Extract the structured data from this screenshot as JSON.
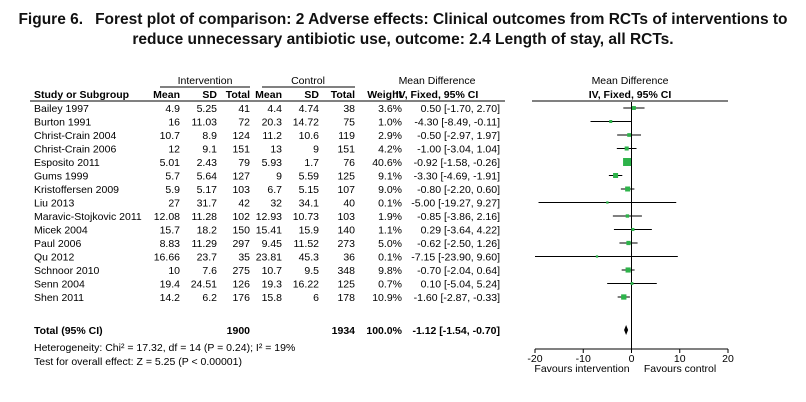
{
  "caption": {
    "label": "Figure 6.",
    "line1": "Forest plot of comparison: 2 Adverse effects: Clinical outcomes from RCTs of interventions to",
    "line2": "reduce unnecessary antibiotic use, outcome: 2.4 Length of stay, all RCTs."
  },
  "headers": {
    "intervention": "Intervention",
    "control": "Control",
    "md_top": "Mean Difference",
    "md_top2": "Mean Difference",
    "study": "Study or Subgroup",
    "mean": "Mean",
    "sd": "SD",
    "total": "Total",
    "mean2": "Mean",
    "sd2": "SD",
    "total2": "Total",
    "weight": "Weight",
    "method": "IV, Fixed, 95% CI",
    "method2": "IV, Fixed, 95% CI"
  },
  "total_row": {
    "label": "Total (95% CI)",
    "n_int": "1900",
    "n_ctrl": "1934",
    "weight": "100.0%",
    "ci": "-1.12 [-1.54, -0.70]"
  },
  "footer": {
    "heterogeneity": "Heterogeneity: Chi² = 17.32, df = 14 (P = 0.24); I² = 19%",
    "overall": "Test for overall effect: Z = 5.25 (P < 0.00001)"
  },
  "axis": {
    "favours_left": "Favours intervention",
    "favours_right": "Favours control"
  },
  "chart_data": {
    "type": "forest",
    "xlim": [
      -20,
      20
    ],
    "ticks": [
      -20,
      -10,
      0,
      10,
      20
    ],
    "tick_labels": [
      "-20",
      "-10",
      "0",
      "10",
      "20"
    ],
    "marker_color": "#2db34a",
    "studies": [
      {
        "name": "Bailey 1997",
        "m1": "4.9",
        "sd1": "5.25",
        "n1": "41",
        "m2": "4.4",
        "sd2": "4.74",
        "n2": "38",
        "weight": "3.6%",
        "ci": "0.50 [-1.70, 2.70]",
        "md": 0.5,
        "lo": -1.7,
        "hi": 2.7,
        "w": 3.6
      },
      {
        "name": "Burton 1991",
        "m1": "16",
        "sd1": "11.03",
        "n1": "72",
        "m2": "20.3",
        "sd2": "14.72",
        "n2": "75",
        "weight": "1.0%",
        "ci": "-4.30 [-8.49, -0.11]",
        "md": -4.3,
        "lo": -8.49,
        "hi": -0.11,
        "w": 1.0
      },
      {
        "name": "Christ-Crain 2004",
        "m1": "10.7",
        "sd1": "8.9",
        "n1": "124",
        "m2": "11.2",
        "sd2": "10.6",
        "n2": "119",
        "weight": "2.9%",
        "ci": "-0.50 [-2.97, 1.97]",
        "md": -0.5,
        "lo": -2.97,
        "hi": 1.97,
        "w": 2.9
      },
      {
        "name": "Christ-Crain 2006",
        "m1": "12",
        "sd1": "9.1",
        "n1": "151",
        "m2": "13",
        "sd2": "9",
        "n2": "151",
        "weight": "4.2%",
        "ci": "-1.00 [-3.04, 1.04]",
        "md": -1.0,
        "lo": -3.04,
        "hi": 1.04,
        "w": 4.2
      },
      {
        "name": "Esposito 2011",
        "m1": "5.01",
        "sd1": "2.43",
        "n1": "79",
        "m2": "5.93",
        "sd2": "1.7",
        "n2": "76",
        "weight": "40.6%",
        "ci": "-0.92 [-1.58, -0.26]",
        "md": -0.92,
        "lo": -1.58,
        "hi": -0.26,
        "w": 40.6
      },
      {
        "name": "Gums 1999",
        "m1": "5.7",
        "sd1": "5.64",
        "n1": "127",
        "m2": "9",
        "sd2": "5.59",
        "n2": "125",
        "weight": "9.1%",
        "ci": "-3.30 [-4.69, -1.91]",
        "md": -3.3,
        "lo": -4.69,
        "hi": -1.91,
        "w": 9.1
      },
      {
        "name": "Kristoffersen 2009",
        "m1": "5.9",
        "sd1": "5.17",
        "n1": "103",
        "m2": "6.7",
        "sd2": "5.15",
        "n2": "107",
        "weight": "9.0%",
        "ci": "-0.80 [-2.20, 0.60]",
        "md": -0.8,
        "lo": -2.2,
        "hi": 0.6,
        "w": 9.0
      },
      {
        "name": "Liu 2013",
        "m1": "27",
        "sd1": "31.7",
        "n1": "42",
        "m2": "32",
        "sd2": "34.1",
        "n2": "40",
        "weight": "0.1%",
        "ci": "-5.00 [-19.27, 9.27]",
        "md": -5.0,
        "lo": -19.27,
        "hi": 9.27,
        "w": 0.1
      },
      {
        "name": "Maravic-Stojkovic 2011",
        "m1": "12.08",
        "sd1": "11.28",
        "n1": "102",
        "m2": "12.93",
        "sd2": "10.73",
        "n2": "103",
        "weight": "1.9%",
        "ci": "-0.85 [-3.86, 2.16]",
        "md": -0.85,
        "lo": -3.86,
        "hi": 2.16,
        "w": 1.9
      },
      {
        "name": "Micek 2004",
        "m1": "15.7",
        "sd1": "18.2",
        "n1": "150",
        "m2": "15.41",
        "sd2": "15.9",
        "n2": "140",
        "weight": "1.1%",
        "ci": "0.29 [-3.64, 4.22]",
        "md": 0.29,
        "lo": -3.64,
        "hi": 4.22,
        "w": 1.1
      },
      {
        "name": "Paul 2006",
        "m1": "8.83",
        "sd1": "11.29",
        "n1": "297",
        "m2": "9.45",
        "sd2": "11.52",
        "n2": "273",
        "weight": "5.0%",
        "ci": "-0.62 [-2.50, 1.26]",
        "md": -0.62,
        "lo": -2.5,
        "hi": 1.26,
        "w": 5.0
      },
      {
        "name": "Qu 2012",
        "m1": "16.66",
        "sd1": "23.7",
        "n1": "35",
        "m2": "23.81",
        "sd2": "45.3",
        "n2": "36",
        "weight": "0.1%",
        "ci": "-7.15 [-23.90, 9.60]",
        "md": -7.15,
        "lo": -23.9,
        "hi": 9.6,
        "w": 0.1
      },
      {
        "name": "Schnoor 2010",
        "m1": "10",
        "sd1": "7.6",
        "n1": "275",
        "m2": "10.7",
        "sd2": "9.5",
        "n2": "348",
        "weight": "9.8%",
        "ci": "-0.70 [-2.04, 0.64]",
        "md": -0.7,
        "lo": -2.04,
        "hi": 0.64,
        "w": 9.8
      },
      {
        "name": "Senn 2004",
        "m1": "19.4",
        "sd1": "24.51",
        "n1": "126",
        "m2": "19.3",
        "sd2": "16.22",
        "n2": "125",
        "weight": "0.7%",
        "ci": "0.10 [-5.04, 5.24]",
        "md": 0.1,
        "lo": -5.04,
        "hi": 5.24,
        "w": 0.7
      },
      {
        "name": "Shen 2011",
        "m1": "14.2",
        "sd1": "6.2",
        "n1": "176",
        "m2": "15.8",
        "sd2": "6",
        "n2": "178",
        "weight": "10.9%",
        "ci": "-1.60 [-2.87, -0.33]",
        "md": -1.6,
        "lo": -2.87,
        "hi": -0.33,
        "w": 10.9
      }
    ],
    "pooled": {
      "md": -1.12,
      "lo": -1.54,
      "hi": -0.7
    }
  }
}
